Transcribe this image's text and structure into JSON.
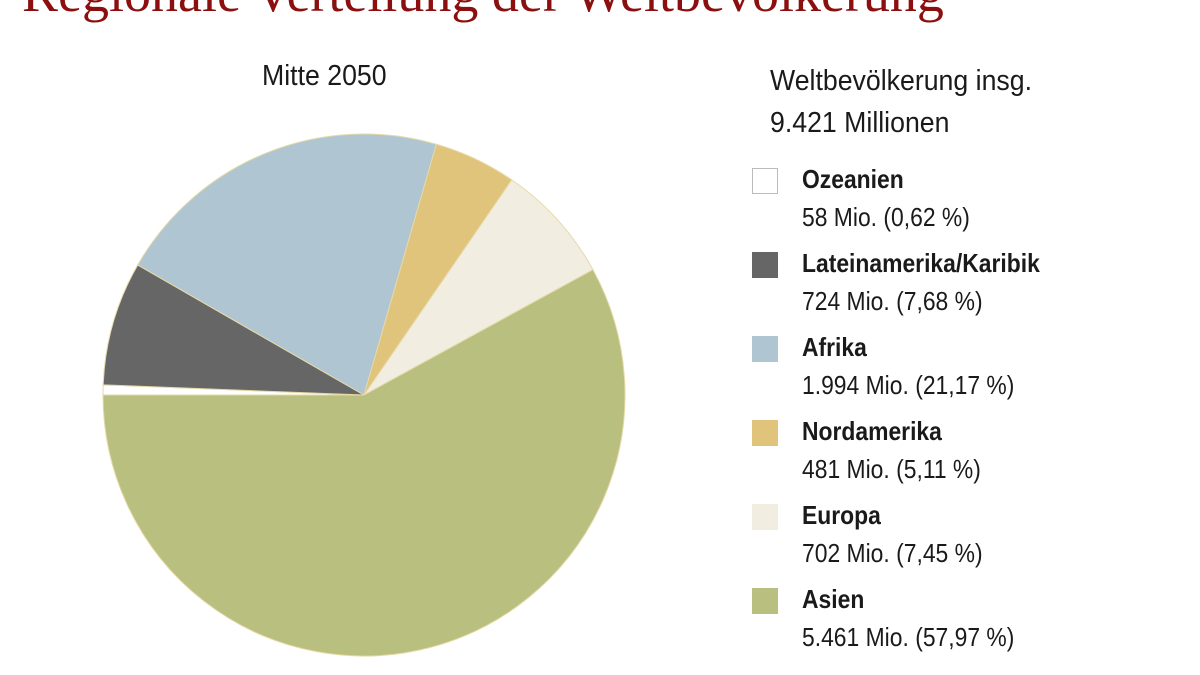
{
  "title": "Regionale Verteilung der Weltbevölkerung",
  "chart_data": {
    "type": "pie",
    "subtitle": "Mitte 2050",
    "total_label": "Weltbevölkerung insg.",
    "total_value": "9.421 Millionen",
    "legend_position": "right",
    "slices": [
      {
        "name": "Ozeanien",
        "value": 58,
        "percent": 0.62,
        "label": "58 Mio. (0,62 %)",
        "color": "#ffffff"
      },
      {
        "name": "Lateinamerika/Karibik",
        "value": 724,
        "percent": 7.68,
        "label": "724 Mio. (7,68 %)",
        "color": "#666666"
      },
      {
        "name": "Afrika",
        "value": 1994,
        "percent": 21.17,
        "label": "1.994 Mio. (21,17 %)",
        "color": "#afc5d2"
      },
      {
        "name": "Nordamerika",
        "value": 481,
        "percent": 5.11,
        "label": "481 Mio. (5,11 %)",
        "color": "#e0c47c"
      },
      {
        "name": "Europa",
        "value": 702,
        "percent": 7.45,
        "label": "702 Mio. (7,45 %)",
        "color": "#f1ede1"
      },
      {
        "name": "Asien",
        "value": 5461,
        "percent": 57.97,
        "label": "5.461 Mio. (57,97 %)",
        "color": "#b9bf7f"
      }
    ]
  }
}
